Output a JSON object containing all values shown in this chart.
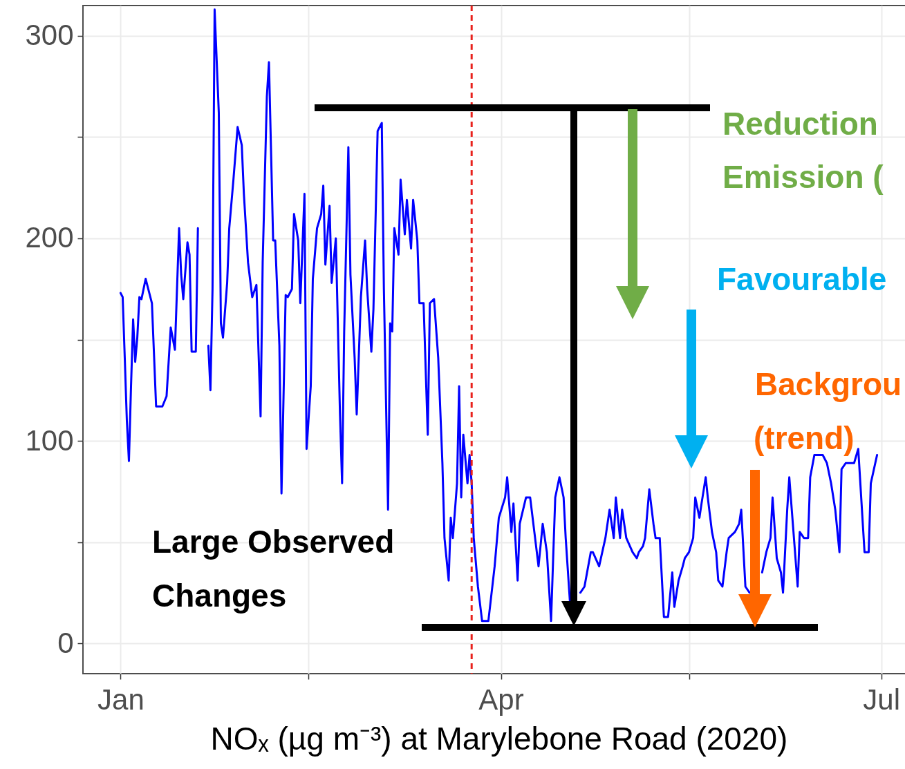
{
  "chart_data": {
    "type": "line",
    "xlabel": "NOₓ (µg m⁻³) at Marylebone Road (2020)",
    "xlim": [
      "2019-12-23",
      "2020-07-09"
    ],
    "xticks": [
      {
        "value": "2020-01-01",
        "label": "Jan"
      },
      {
        "value": "2020-02-15",
        "label": null
      },
      {
        "value": "2020-04-01",
        "label": "Apr"
      },
      {
        "value": "2020-05-16",
        "label": null
      },
      {
        "value": "2020-07-01",
        "label": "Jul"
      }
    ],
    "ylim": [
      -15,
      315
    ],
    "yticks": [
      0,
      {
        "value": 50,
        "label": null
      },
      100,
      {
        "value": 150,
        "label": null
      },
      200,
      {
        "value": 250,
        "label": null
      },
      300
    ],
    "grid": true,
    "x": [
      "2020-01-01",
      "2020-01-01T12:00",
      "2020-01-02",
      "2020-01-02T12:00",
      "2020-01-03",
      "2020-01-03T12:00",
      "2020-01-04",
      "2020-01-04T12:00",
      "2020-01-05",
      "2020-01-05T12:00",
      "2020-01-06",
      "2020-01-07",
      "2020-01-08T12:00",
      "2020-01-09T12:00",
      "2020-01-11",
      "2020-01-12",
      "2020-01-13",
      "2020-01-14",
      "2020-01-15",
      "2020-01-15T12:00",
      "2020-01-16",
      "2020-01-17",
      "2020-01-17T12:00",
      "2020-01-18",
      "2020-01-19",
      "2020-01-19T12:00",
      "2020-01-20",
      "2020-01-21",
      "2020-01-22",
      "2020-01-22T12:00",
      "2020-01-23",
      "2020-01-23T12:00",
      "2020-01-24T12:00",
      "2020-01-25",
      "2020-01-25T12:00",
      "2020-01-26T12:00",
      "2020-01-27",
      "2020-01-28",
      "2020-01-29",
      "2020-01-30",
      "2020-01-30T12:00",
      "2020-01-31T12:00",
      "2020-02-01T12:00",
      "2020-02-02T12:00",
      "2020-02-03T12:00",
      "2020-02-04",
      "2020-02-05",
      "2020-02-05T12:00",
      "2020-02-06T12:00",
      "2020-02-07",
      "2020-02-08",
      "2020-02-08T12:00",
      "2020-02-09T12:00",
      "2020-02-10",
      "2020-02-11",
      "2020-02-11T12:00",
      "2020-02-12T12:00",
      "2020-02-13",
      "2020-02-14",
      "2020-02-14T12:00",
      "2020-02-15T12:00",
      "2020-02-16",
      "2020-02-17",
      "2020-02-18",
      "2020-02-18T12:00",
      "2020-02-19",
      "2020-02-20",
      "2020-02-20T12:00",
      "2020-02-21T12:00",
      "2020-02-22T12:00",
      "2020-02-23",
      "2020-02-23T12:00",
      "2020-02-24T12:00",
      "2020-02-25",
      "2020-02-26",
      "2020-02-26T12:00",
      "2020-02-27T12:00",
      "2020-02-28T12:00",
      "2020-02-29",
      "2020-03-01",
      "2020-03-01T12:00",
      "2020-03-02T12:00",
      "2020-03-03T12:00",
      "2020-03-04",
      "2020-03-05",
      "2020-03-05T12:00",
      "2020-03-06",
      "2020-03-06T12:00",
      "2020-03-07T12:00",
      "2020-03-08",
      "2020-03-09",
      "2020-03-09T12:00",
      "2020-03-10T12:00",
      "2020-03-11",
      "2020-03-12",
      "2020-03-12T12:00",
      "2020-03-13T12:00",
      "2020-03-14T12:00",
      "2020-03-15",
      "2020-03-16",
      "2020-03-17",
      "2020-03-18",
      "2020-03-18T12:00",
      "2020-03-19T12:00",
      "2020-03-20",
      "2020-03-20T12:00",
      "2020-03-21T12:00",
      "2020-03-22",
      "2020-03-22T12:00",
      "2020-03-23",
      "2020-03-24",
      "2020-03-24T12:00",
      "2020-03-25",
      "2020-03-25T12:00",
      "2020-03-26T12:00",
      "2020-03-27T12:00",
      "2020-03-29",
      "2020-03-30T12:00",
      "2020-03-31T12:00",
      "2020-04-02",
      "2020-04-02T12:00",
      "2020-04-03T12:00",
      "2020-04-04",
      "2020-04-05",
      "2020-04-05T12:00",
      "2020-04-07",
      "2020-04-08",
      "2020-04-09",
      "2020-04-10",
      "2020-04-11",
      "2020-04-12",
      "2020-04-13",
      "2020-04-13T12:00",
      "2020-04-14",
      "2020-04-15",
      "2020-04-16",
      "2020-04-16T12:00",
      "2020-04-17T12:00",
      "2020-04-18T12:00",
      "2020-04-20",
      "2020-04-21",
      "2020-04-22T12:00",
      "2020-04-23",
      "2020-04-24T12:00",
      "2020-04-26",
      "2020-04-26T12:00",
      "2020-04-27",
      "2020-04-28",
      "2020-04-28T12:00",
      "2020-04-29T12:00",
      "2020-04-30",
      "2020-05-01",
      "2020-05-02T12:00",
      "2020-05-03T12:00",
      "2020-05-04",
      "2020-05-05",
      "2020-05-05T12:00",
      "2020-05-06T12:00",
      "2020-05-07T12:00",
      "2020-05-08",
      "2020-05-09",
      "2020-05-10",
      "2020-05-11",
      "2020-05-12",
      "2020-05-12T12:00",
      "2020-05-13T12:00",
      "2020-05-14T12:00",
      "2020-05-15",
      "2020-05-16",
      "2020-05-17",
      "2020-05-17T12:00",
      "2020-05-18T12:00",
      "2020-05-19",
      "2020-05-20",
      "2020-05-20T12:00",
      "2020-05-21T12:00",
      "2020-05-22T12:00",
      "2020-05-23",
      "2020-05-24",
      "2020-05-25",
      "2020-05-25T12:00",
      "2020-05-27",
      "2020-05-28",
      "2020-05-28T12:00",
      "2020-05-29T12:00",
      "2020-05-30T12:00",
      "2020-05-31T12:00",
      "2020-06-01T12:00",
      "2020-06-02T12:00",
      "2020-06-03T12:00",
      "2020-06-04T12:00",
      "2020-06-05",
      "2020-06-06",
      "2020-06-07",
      "2020-06-07T12:00",
      "2020-06-08T12:00",
      "2020-06-09",
      "2020-06-10",
      "2020-06-11",
      "2020-06-11T12:00",
      "2020-06-12T12:00",
      "2020-06-13T12:00",
      "2020-06-14",
      "2020-06-15",
      "2020-06-16",
      "2020-06-17",
      "2020-06-18",
      "2020-06-19",
      "2020-06-20",
      "2020-06-21",
      "2020-06-21T12:00",
      "2020-06-22T12:00",
      "2020-06-23T12:00",
      "2020-06-24T12:00",
      "2020-06-25T12:00",
      "2020-06-26",
      "2020-06-27",
      "2020-06-28",
      "2020-06-28T12:00",
      "2020-06-30"
    ],
    "series": [
      {
        "color": "#0000ff",
        "values": [
          173,
          171,
          141,
          110,
          90,
          127,
          160,
          139,
          151,
          171,
          170,
          180,
          168,
          117,
          117,
          122,
          156,
          145,
          205,
          182,
          170,
          198,
          192,
          144,
          144,
          205,
          null,
          null,
          147,
          125,
          175,
          313,
          262,
          158,
          151,
          178,
          205,
          229,
          255,
          246,
          222,
          188,
          171,
          177,
          112,
          188,
          270,
          287,
          199,
          199,
          147,
          74,
          172,
          171,
          175,
          212,
          199,
          168,
          222,
          96,
          127,
          180,
          205,
          212,
          226,
          187,
          216,
          178,
          200,
          113,
          79,
          154,
          245,
          182,
          141,
          113,
          171,
          199,
          175,
          144,
          165,
          253,
          257,
          175,
          66,
          158,
          154,
          205,
          192,
          229,
          202,
          219,
          195,
          219,
          199,
          168,
          168,
          103,
          168,
          170,
          141,
          89,
          52,
          31,
          62,
          52,
          79,
          127,
          72,
          103,
          79,
          93,
          79,
          52,
          28,
          11,
          11,
          38,
          62,
          72,
          82,
          55,
          69,
          31,
          59,
          72,
          72,
          55,
          38,
          59,
          45,
          11,
          42,
          72,
          82,
          72,
          52,
          21,
          null,
          25,
          28,
          45,
          45,
          38,
          52,
          59,
          66,
          52,
          72,
          52,
          66,
          52,
          45,
          42,
          45,
          48,
          52,
          76,
          59,
          52,
          52,
          13,
          13,
          35,
          18,
          31,
          38,
          42,
          45,
          52,
          72,
          62,
          69,
          82,
          72,
          55,
          45,
          31,
          28,
          45,
          52,
          55,
          59,
          66,
          28,
          25,
          null,
          null,
          35,
          45,
          52,
          72,
          42,
          35,
          25,
          66,
          82,
          55,
          28,
          55,
          52,
          52,
          82,
          93,
          93,
          93,
          89,
          79,
          66,
          45,
          86,
          89,
          89,
          89,
          96,
          79,
          45,
          45,
          79,
          93
        ]
      }
    ],
    "ref_lines": [
      {
        "axis": "x",
        "value": "2020-03-25",
        "color": "#e8211c",
        "line_style": "dashed"
      }
    ],
    "annotations": [
      "Large Observed",
      "Changes",
      "Reduction",
      "Emission (",
      "Favourable",
      "Backgrou",
      "(trend)"
    ]
  }
}
